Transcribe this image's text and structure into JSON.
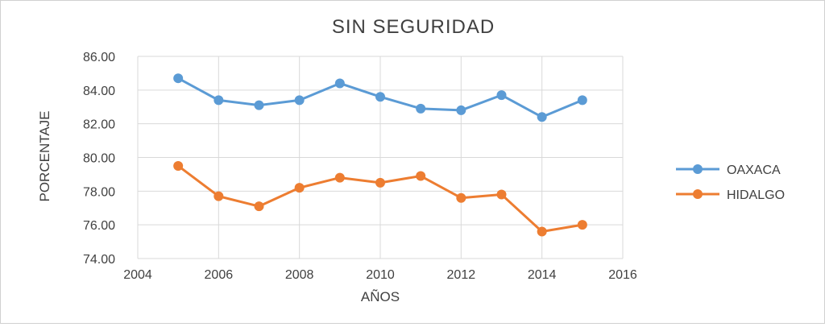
{
  "chart_data": {
    "type": "line",
    "title": "SIN SEGURIDAD",
    "xlabel": "AÑOS",
    "ylabel": "PORCENTAJE",
    "xlim": [
      2004,
      2016
    ],
    "ylim": [
      74,
      86
    ],
    "x_ticks": [
      "2004",
      "2006",
      "2008",
      "2010",
      "2012",
      "2014",
      "2016"
    ],
    "y_ticks": [
      "74.00",
      "76.00",
      "78.00",
      "80.00",
      "82.00",
      "84.00",
      "86.00"
    ],
    "grid": true,
    "legend_position": "right",
    "x": [
      2005,
      2006,
      2007,
      2008,
      2009,
      2010,
      2011,
      2012,
      2013,
      2014,
      2015
    ],
    "series": [
      {
        "name": "OAXACA",
        "color": "#5B9BD5",
        "values": [
          84.7,
          83.4,
          83.1,
          83.4,
          84.4,
          83.6,
          82.9,
          82.8,
          83.7,
          82.4,
          83.4
        ]
      },
      {
        "name": "HIDALGO",
        "color": "#ED7D31",
        "values": [
          79.5,
          77.7,
          77.1,
          78.2,
          78.8,
          78.5,
          78.9,
          77.6,
          77.8,
          75.6,
          76.0
        ]
      }
    ]
  }
}
